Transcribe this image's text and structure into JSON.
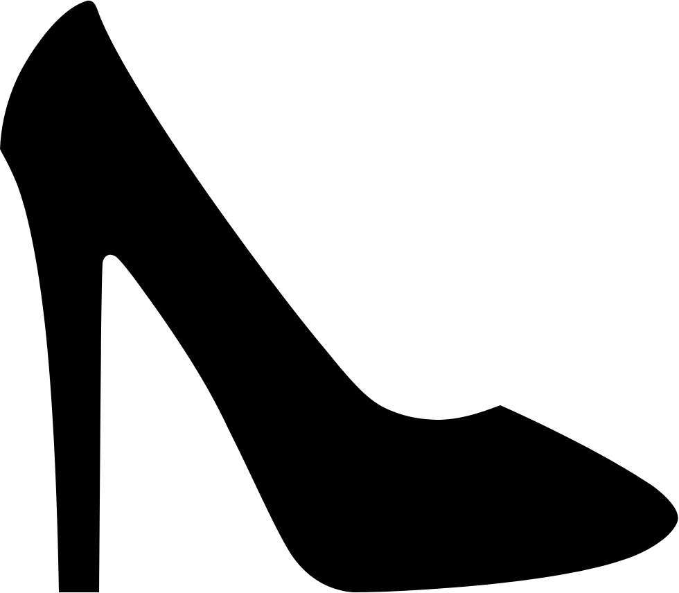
{
  "icon": {
    "name": "high-heel-shoe-icon",
    "fill_color": "#000000",
    "background_color": "#ffffff"
  }
}
